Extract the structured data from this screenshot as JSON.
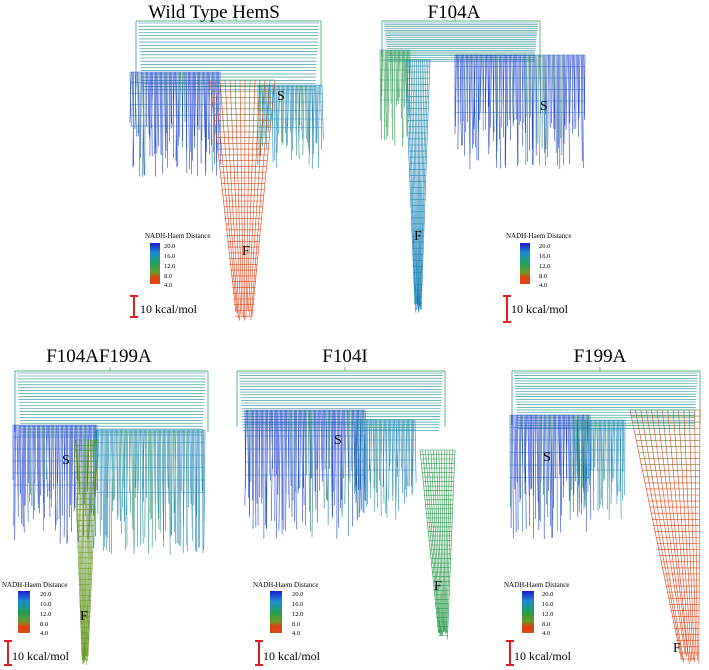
{
  "colorbar": {
    "title": "NADH-Haem Distance",
    "ticks": [
      "20.0",
      "16.0",
      "12.0",
      "8.0",
      "4.0"
    ],
    "colors": [
      "#1a1acc",
      "#1e8ecf",
      "#1f9f55",
      "#5a9a2e",
      "#e04010",
      "#d94a1a"
    ]
  },
  "scale_bar": {
    "label": "10 kcal/mol",
    "color": "#e02020"
  },
  "panels": [
    {
      "title": "Wild Type HemS",
      "labels": [
        "S",
        "F"
      ]
    },
    {
      "title": "F104A",
      "labels": [
        "S",
        "F"
      ]
    },
    {
      "title": "F104AF199A",
      "labels": [
        "S",
        "F"
      ]
    },
    {
      "title": "F104I",
      "labels": [
        "S",
        "F"
      ]
    },
    {
      "title": "F199A",
      "labels": [
        "S",
        "F"
      ]
    }
  ]
}
